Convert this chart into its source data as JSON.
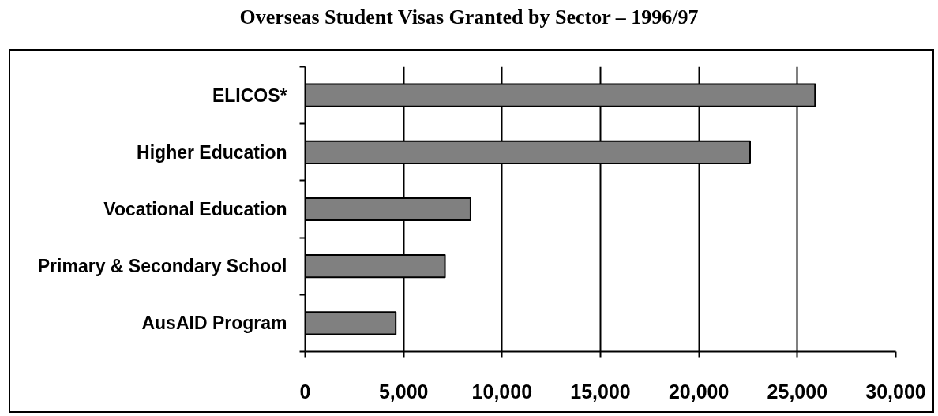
{
  "chart_data": {
    "type": "bar",
    "orientation": "horizontal",
    "title": "Overseas Student Visas Granted by Sector – 1996/97",
    "categories": [
      "ELICOS*",
      "Higher Education",
      "Vocational Education",
      "Primary & Secondary School",
      "AusAID Program"
    ],
    "values": [
      25900,
      22600,
      8400,
      7100,
      4600
    ],
    "color": "#808080",
    "xlim": [
      0,
      30000
    ],
    "xticks": [
      0,
      {
        "value": 5000,
        "label": "5,000"
      },
      {
        "value": 10000,
        "label": "10,000"
      },
      {
        "value": 15000,
        "label": "15,000"
      },
      {
        "value": 20000,
        "label": "20,000"
      },
      {
        "value": 25000,
        "label": "25,000"
      },
      {
        "value": 30000,
        "label": "30,000"
      }
    ],
    "grid": "x"
  }
}
